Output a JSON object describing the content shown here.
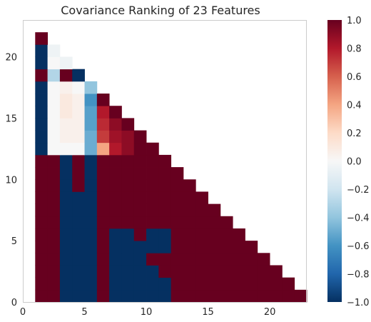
{
  "chart_data": {
    "type": "heatmap",
    "title": "Covariance Ranking of 23 Features",
    "xlabel": "",
    "ylabel": "",
    "xlim": [
      0,
      23
    ],
    "ylim": [
      0,
      23
    ],
    "x_ticks": [
      0,
      5,
      10,
      15,
      20
    ],
    "y_ticks": [
      0,
      5,
      10,
      15,
      20
    ],
    "grid": false,
    "colormap": {
      "name": "RdBu_r",
      "stops": [
        "#053061",
        "#2166ac",
        "#4393c3",
        "#92c5de",
        "#d1e5f0",
        "#f7f7f7",
        "#fddbc7",
        "#f4a582",
        "#d6604d",
        "#b2182b",
        "#67001f"
      ],
      "vmin": -1.0,
      "vmax": 1.0,
      "ticks": [
        -1.0,
        -0.8,
        -0.6,
        -0.4,
        -0.2,
        0.0,
        0.2,
        0.4,
        0.6,
        0.8,
        1.0
      ],
      "tick_labels": [
        "−1.0",
        "−0.8",
        "−0.6",
        "−0.4",
        "−0.2",
        "0.0",
        "0.2",
        "0.4",
        "0.6",
        "0.8",
        "1.0"
      ]
    },
    "rows_note_value_order": "each row lists covariance values from column 0 upward, row 0 at bottom",
    "rows": [
      [
        1,
        1,
        -1,
        -1,
        -1,
        1,
        -1,
        -1,
        -1,
        -1,
        -1,
        1,
        1,
        1,
        1,
        1,
        1,
        1,
        1,
        1,
        1,
        1
      ],
      [
        1,
        1,
        -1,
        -1,
        -1,
        1,
        -1,
        -1,
        -1,
        -1,
        -1,
        1,
        1,
        1,
        1,
        1,
        1,
        1,
        1,
        1,
        1
      ],
      [
        1,
        1,
        -1,
        -1,
        -1,
        1,
        -1,
        -1,
        -1,
        -1,
        1,
        1,
        1,
        1,
        1,
        1,
        1,
        1,
        1,
        1
      ],
      [
        1,
        1,
        -1,
        -1,
        -1,
        1,
        -1,
        -1,
        -1,
        1,
        1,
        1,
        1,
        1,
        1,
        1,
        1,
        1,
        1
      ],
      [
        1,
        1,
        -1,
        -1,
        -1,
        1,
        -1,
        -1,
        -1,
        -1,
        -1,
        1,
        1,
        1,
        1,
        1,
        1,
        1
      ],
      [
        1,
        1,
        -1,
        -1,
        -1,
        1,
        -1,
        -1,
        1,
        -1,
        -1,
        1,
        1,
        1,
        1,
        1,
        1
      ],
      [
        1,
        1,
        -1,
        -1,
        -1,
        1,
        1,
        1,
        1,
        1,
        1,
        1,
        1,
        1,
        1,
        1
      ],
      [
        1,
        1,
        -1,
        -1,
        -1,
        1,
        1,
        1,
        1,
        1,
        1,
        1,
        1,
        1,
        1
      ],
      [
        1,
        1,
        -1,
        -1,
        -1,
        1,
        1,
        1,
        1,
        1,
        1,
        1,
        1,
        1
      ],
      [
        1,
        1,
        -1,
        1,
        -1,
        1,
        1,
        1,
        1,
        1,
        1,
        1,
        1
      ],
      [
        1,
        1,
        -1,
        1,
        -1,
        1,
        1,
        1,
        1,
        1,
        1,
        1
      ],
      [
        1,
        1,
        -1,
        1,
        -1,
        1,
        1,
        1,
        1,
        1,
        1
      ],
      [
        -1,
        0,
        0,
        0,
        -0.5,
        0.4,
        0.8,
        0.9,
        1,
        1
      ],
      [
        -1,
        0,
        0.05,
        0.05,
        -0.5,
        0.7,
        0.85,
        0.9,
        1
      ],
      [
        -1,
        0,
        0.05,
        0.05,
        -0.55,
        0.75,
        0.9,
        1
      ],
      [
        -1,
        0,
        0.1,
        0.05,
        -0.55,
        0.8,
        1
      ],
      [
        -1,
        0,
        0.1,
        0.05,
        -0.6,
        1
      ],
      [
        -1,
        0,
        0.05,
        0,
        -0.4
      ],
      [
        1,
        -0.3,
        1,
        -1
      ],
      [
        -1,
        0,
        -0.05
      ],
      [
        -1,
        -0.05
      ],
      [
        1
      ]
    ]
  }
}
